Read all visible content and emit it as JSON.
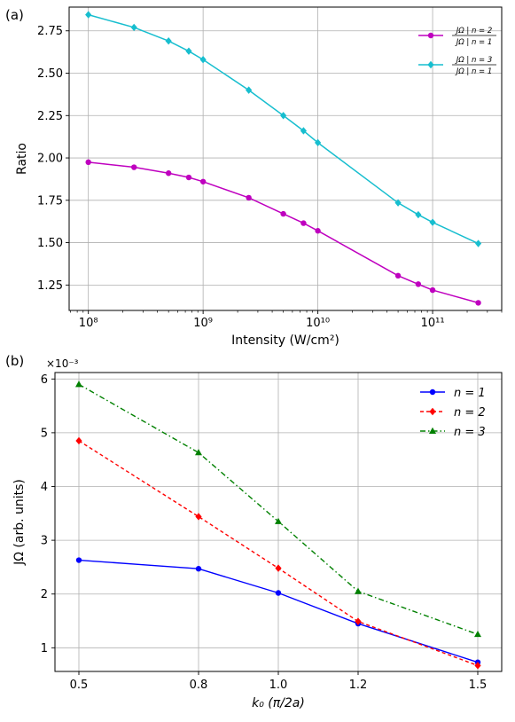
{
  "chart_data": [
    {
      "type": "line",
      "panel_label": "(a)",
      "xlabel": "Intensity (W/cm²)",
      "ylabel": "Ratio",
      "xscale": "log",
      "xlim": [
        68000000.0,
        400000000000.0
      ],
      "ylim": [
        1.1,
        2.89
      ],
      "x_ticks": [
        100000000.0,
        1000000000.0,
        10000000000.0,
        100000000000.0
      ],
      "x_tick_labels": [
        "10⁸",
        "10⁹",
        "10¹⁰",
        "10¹¹"
      ],
      "y_ticks": [
        1.25,
        1.5,
        1.75,
        2.0,
        2.25,
        2.5,
        2.75
      ],
      "y_tick_labels": [
        "1.25",
        "1.50",
        "1.75",
        "2.00",
        "2.25",
        "2.50",
        "2.75"
      ],
      "grid": true,
      "legend_position": "top-right",
      "series": [
        {
          "legend_num": "JΩ | n = 2",
          "legend_den": "JΩ | n = 1",
          "color": "#bf00bf",
          "marker": "circle",
          "linestyle": "solid",
          "x": [
            100000000.0,
            250000000.0,
            500000000.0,
            750000000.0,
            1000000000.0,
            2500000000.0,
            5000000000.0,
            7500000000.0,
            10000000000.0,
            50000000000.0,
            75000000000.0,
            100000000000.0,
            250000000000.0
          ],
          "y": [
            1.975,
            1.945,
            1.91,
            1.885,
            1.86,
            1.765,
            1.67,
            1.615,
            1.57,
            1.305,
            1.255,
            1.22,
            1.145
          ]
        },
        {
          "legend_num": "JΩ | n = 3",
          "legend_den": "JΩ | n = 1",
          "color": "#17becf",
          "marker": "diamond",
          "linestyle": "solid",
          "x": [
            100000000.0,
            250000000.0,
            500000000.0,
            750000000.0,
            1000000000.0,
            2500000000.0,
            5000000000.0,
            7500000000.0,
            10000000000.0,
            50000000000.0,
            75000000000.0,
            100000000000.0,
            250000000000.0
          ],
          "y": [
            2.845,
            2.77,
            2.69,
            2.63,
            2.58,
            2.4,
            2.25,
            2.16,
            2.09,
            1.735,
            1.665,
            1.62,
            1.495
          ]
        }
      ]
    },
    {
      "type": "line",
      "panel_label": "(b)",
      "xlabel": "k₀ (π/2a)",
      "ylabel": "JΩ (arb. units)",
      "offset_text": "×10⁻³",
      "xlim": [
        0.44,
        1.56
      ],
      "ylim": [
        0.56,
        6.12
      ],
      "x_ticks": [
        0.5,
        0.8,
        1.0,
        1.2,
        1.5
      ],
      "x_tick_labels": [
        "0.5",
        "0.8",
        "1.0",
        "1.2",
        "1.5"
      ],
      "y_ticks": [
        1,
        2,
        3,
        4,
        5,
        6
      ],
      "y_tick_labels": [
        "1",
        "2",
        "3",
        "4",
        "5",
        "6"
      ],
      "grid": true,
      "legend_position": "top-right",
      "x": [
        0.5,
        0.8,
        1.0,
        1.2,
        1.5
      ],
      "series": [
        {
          "name": "n = 1",
          "color": "#0000ff",
          "marker": "circle",
          "linestyle": "solid",
          "values": [
            2.63,
            2.47,
            2.02,
            1.45,
            0.73
          ]
        },
        {
          "name": "n = 2",
          "color": "#ff0000",
          "marker": "diamond",
          "linestyle": "dashed",
          "values": [
            4.85,
            3.44,
            2.48,
            1.49,
            0.67
          ]
        },
        {
          "name": "n = 3",
          "color": "#008000",
          "marker": "triangle",
          "linestyle": "dashdot",
          "values": [
            5.9,
            4.63,
            3.35,
            2.05,
            1.25
          ]
        }
      ]
    }
  ]
}
